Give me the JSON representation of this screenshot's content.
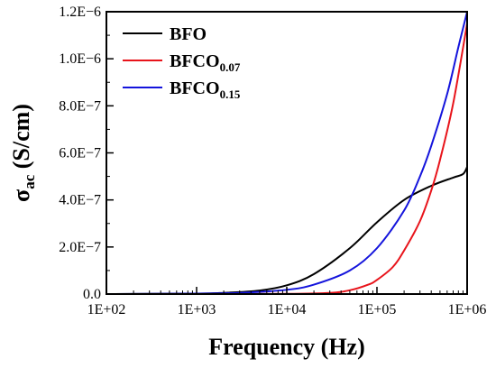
{
  "chart_data": {
    "type": "line",
    "xlabel": "Frequency (Hz)",
    "ylabel_main": "σ",
    "ylabel_sub": "ac",
    "ylabel_unit": " (S/cm)",
    "x_scale": "log",
    "xlim": [
      100,
      1000000
    ],
    "ylim": [
      0,
      1.2e-06
    ],
    "grid": false,
    "legend_position": "top-left",
    "x_ticks": [
      {
        "value": 100,
        "label": "1E+02"
      },
      {
        "value": 1000,
        "label": "1E+03"
      },
      {
        "value": 10000,
        "label": "1E+04"
      },
      {
        "value": 100000,
        "label": "1E+05"
      },
      {
        "value": 1000000,
        "label": "1E+06"
      }
    ],
    "y_ticks": [
      {
        "value": 0,
        "label": "0.0"
      },
      {
        "value": 2e-07,
        "label": "2.0E−7"
      },
      {
        "value": 4e-07,
        "label": "4.0E−7"
      },
      {
        "value": 6e-07,
        "label": "6.0E−7"
      },
      {
        "value": 8e-07,
        "label": "8.0E−7"
      },
      {
        "value": 1e-06,
        "label": "1.0E−6"
      },
      {
        "value": 1.2e-06,
        "label": "1.2E−6"
      }
    ],
    "series": [
      {
        "name": "BFO",
        "name_sub": "",
        "color": "#000000",
        "points": [
          [
            100,
            0
          ],
          [
            1000,
            2e-09
          ],
          [
            2000,
            5e-09
          ],
          [
            5000,
            1.5e-08
          ],
          [
            10000,
            3.7e-08
          ],
          [
            20000,
            8.5e-08
          ],
          [
            50000,
            1.95e-07
          ],
          [
            100000,
            3.05e-07
          ],
          [
            200000,
            4e-07
          ],
          [
            400000,
            4.6e-07
          ],
          [
            700000,
            4.95e-07
          ],
          [
            900000,
            5.1e-07
          ],
          [
            1000000,
            5.4e-07
          ]
        ]
      },
      {
        "name": "BFCO",
        "name_sub": "0.07",
        "color": "#e8141b",
        "points": [
          [
            100,
            0
          ],
          [
            1000,
            0
          ],
          [
            10000,
            1e-09
          ],
          [
            30000,
            5e-09
          ],
          [
            50000,
            1.6e-08
          ],
          [
            80000,
            4e-08
          ],
          [
            100000,
            6e-08
          ],
          [
            150000,
            1.15e-07
          ],
          [
            200000,
            1.85e-07
          ],
          [
            300000,
            3.1e-07
          ],
          [
            400000,
            4.4e-07
          ],
          [
            500000,
            5.7e-07
          ],
          [
            700000,
            8.1e-07
          ],
          [
            1000000,
            1.15e-06
          ]
        ]
      },
      {
        "name": "BFCO",
        "name_sub": "0.15",
        "color": "#1414dc",
        "points": [
          [
            100,
            0
          ],
          [
            1000,
            2e-09
          ],
          [
            3000,
            5e-09
          ],
          [
            10000,
            1.8e-08
          ],
          [
            20000,
            4e-08
          ],
          [
            50000,
            1e-07
          ],
          [
            100000,
            1.95e-07
          ],
          [
            200000,
            3.55e-07
          ],
          [
            300000,
            5e-07
          ],
          [
            400000,
            6.3e-07
          ],
          [
            600000,
            8.5e-07
          ],
          [
            800000,
            1.05e-06
          ],
          [
            1000000,
            1.2e-06
          ]
        ]
      }
    ]
  }
}
